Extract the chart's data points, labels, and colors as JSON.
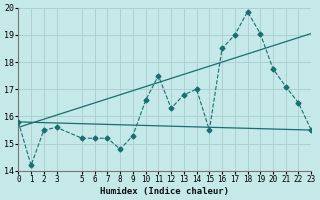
{
  "title": "",
  "xlabel": "Humidex (Indice chaleur)",
  "bg_color": "#c5e8e8",
  "grid_color": "#aed0d0",
  "line_color": "#1a6e6e",
  "xlim": [
    0,
    23
  ],
  "ylim": [
    14,
    20
  ],
  "yticks": [
    14,
    15,
    16,
    17,
    18,
    19,
    20
  ],
  "xticks": [
    0,
    1,
    2,
    3,
    5,
    6,
    7,
    8,
    9,
    10,
    11,
    12,
    13,
    14,
    15,
    16,
    17,
    18,
    19,
    20,
    21,
    22,
    23
  ],
  "xtick_labels": [
    "0",
    "1",
    "2",
    "3",
    "5",
    "6",
    "7",
    "8",
    "9",
    "10",
    "11",
    "12",
    "13",
    "14",
    "15",
    "16",
    "17",
    "18",
    "19",
    "20",
    "21",
    "22",
    "23"
  ],
  "series1_x": [
    0,
    1,
    2,
    3,
    5,
    6,
    7,
    8,
    9,
    10,
    11,
    12,
    13,
    14,
    15,
    16,
    17,
    18,
    19,
    20,
    21,
    22,
    23
  ],
  "series1_y": [
    15.8,
    14.2,
    15.5,
    15.6,
    15.2,
    15.2,
    15.2,
    14.8,
    15.3,
    16.6,
    17.5,
    16.3,
    16.8,
    17.0,
    15.5,
    18.5,
    19.0,
    19.85,
    19.05,
    17.75,
    17.1,
    16.5,
    15.5
  ],
  "flat_line_x": [
    0,
    23
  ],
  "flat_line_y": [
    15.8,
    15.5
  ],
  "trend_x": [
    0,
    23
  ],
  "trend_y": [
    15.6,
    19.05
  ]
}
